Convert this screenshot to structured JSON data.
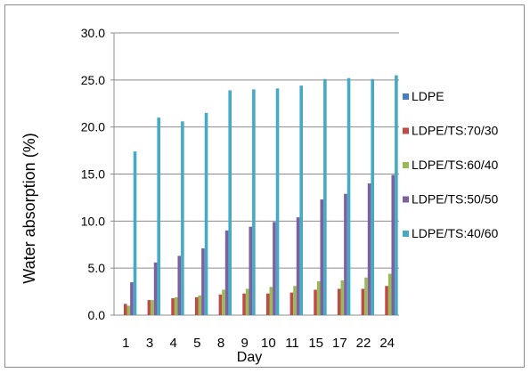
{
  "chart_data": {
    "type": "bar",
    "xlabel": "Day",
    "ylabel": "Water absorption (%)",
    "ylim": [
      0,
      30
    ],
    "yticks": [
      "0.0",
      "5.0",
      "10.0",
      "15.0",
      "20.0",
      "25.0",
      "30.0"
    ],
    "grid": "horizontal major gridlines",
    "legend_position": "right",
    "categories": [
      "1",
      "3",
      "4",
      "5",
      "8",
      "9",
      "10",
      "11",
      "15",
      "17",
      "22",
      "24"
    ],
    "series": [
      {
        "name": "LDPE",
        "color": "#4a7ebb",
        "values": [
          0,
          0,
          0,
          0,
          0,
          0,
          0,
          0,
          0,
          0,
          0,
          0
        ]
      },
      {
        "name": "LDPE/TS:70/30",
        "color": "#be4b48",
        "values": [
          1.2,
          1.6,
          1.8,
          1.9,
          2.2,
          2.3,
          2.3,
          2.4,
          2.7,
          2.8,
          2.8,
          3.1
        ]
      },
      {
        "name": "LDPE/TS:60/40",
        "color": "#98b954",
        "values": [
          1.0,
          1.6,
          1.9,
          2.1,
          2.7,
          2.8,
          3.0,
          3.1,
          3.6,
          3.7,
          4.0,
          4.4
        ]
      },
      {
        "name": "LDPE/TS:50/50",
        "color": "#7d60a0",
        "values": [
          3.5,
          5.6,
          6.3,
          7.1,
          9.0,
          9.4,
          9.9,
          10.4,
          12.3,
          12.9,
          14.0,
          14.9
        ]
      },
      {
        "name": "LDPE/TS:40/60",
        "color": "#46aac5",
        "values": [
          17.4,
          21.0,
          20.6,
          21.5,
          23.9,
          24.0,
          24.1,
          24.4,
          25.1,
          25.2,
          25.1,
          25.5
        ]
      }
    ]
  }
}
